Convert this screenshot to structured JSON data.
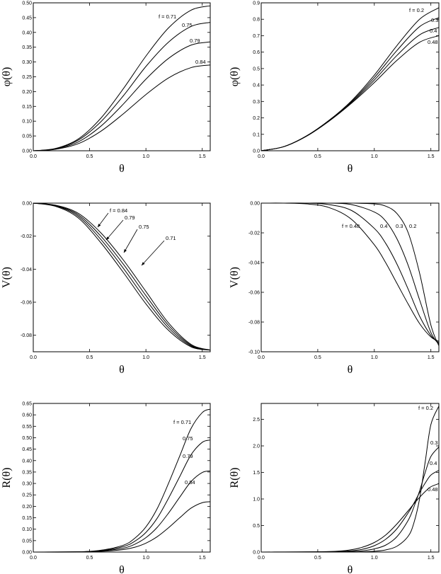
{
  "chart_data": [
    {
      "type": "line",
      "xlabel": "θ",
      "ylabel": "φ(θ)",
      "xlim": [
        0,
        1.5708
      ],
      "ylim": [
        0,
        0.5
      ],
      "xticks": [
        "0.0",
        "0.5",
        "1.0",
        "1.5"
      ],
      "yticks": [
        "0.00",
        "0.05",
        "0.10",
        "0.15",
        "0.20",
        "0.25",
        "0.30",
        "0.35",
        "0.40",
        "0.45",
        "0.50"
      ],
      "x": [
        0,
        0.2,
        0.4,
        0.6,
        0.8,
        1.0,
        1.2,
        1.4,
        1.5708
      ],
      "series": [
        {
          "name": "f = 0.71",
          "values": [
            0,
            0.008,
            0.04,
            0.11,
            0.21,
            0.32,
            0.415,
            0.475,
            0.49
          ]
        },
        {
          "name": "0.75",
          "values": [
            0,
            0.007,
            0.036,
            0.098,
            0.186,
            0.285,
            0.367,
            0.42,
            0.434
          ]
        },
        {
          "name": "0.79",
          "values": [
            0,
            0.006,
            0.03,
            0.083,
            0.158,
            0.242,
            0.312,
            0.357,
            0.368
          ]
        },
        {
          "name": "0.84",
          "values": [
            0,
            0.005,
            0.024,
            0.066,
            0.125,
            0.19,
            0.246,
            0.281,
            0.29
          ]
        }
      ]
    },
    {
      "type": "line",
      "xlabel": "θ",
      "ylabel": "φ(θ)",
      "xlim": [
        0,
        1.5708
      ],
      "ylim": [
        0,
        0.9
      ],
      "xticks": [
        "0.0",
        "0.5",
        "1.0",
        "1.5"
      ],
      "yticks": [
        "0.0",
        "0.1",
        "0.2",
        "0.3",
        "0.4",
        "0.5",
        "0.6",
        "0.7",
        "0.8",
        "0.9"
      ],
      "x": [
        0,
        0.2,
        0.4,
        0.6,
        0.8,
        1.0,
        1.2,
        1.4,
        1.5708
      ],
      "series": [
        {
          "name": "f = 0.2",
          "values": [
            0,
            0.025,
            0.09,
            0.185,
            0.305,
            0.46,
            0.64,
            0.8,
            0.87
          ]
        },
        {
          "name": "0.3",
          "values": [
            0,
            0.025,
            0.09,
            0.185,
            0.3,
            0.445,
            0.61,
            0.755,
            0.81
          ]
        },
        {
          "name": "0.4",
          "values": [
            0,
            0.025,
            0.089,
            0.183,
            0.295,
            0.43,
            0.58,
            0.705,
            0.75
          ]
        },
        {
          "name": "0.48",
          "values": [
            0,
            0.025,
            0.088,
            0.18,
            0.29,
            0.415,
            0.55,
            0.66,
            0.7
          ]
        }
      ]
    },
    {
      "type": "line",
      "xlabel": "θ",
      "ylabel": "V(θ)",
      "xlim": [
        0,
        1.5708
      ],
      "ylim": [
        -0.09,
        0
      ],
      "xticks": [
        "0.0",
        "0.5",
        "1.0",
        "1.5"
      ],
      "yticks": [
        "0.00",
        "-0.02",
        "-0.04",
        "-0.06",
        "-0.08"
      ],
      "x": [
        0,
        0.2,
        0.4,
        0.6,
        0.8,
        1.0,
        1.2,
        1.4,
        1.5708
      ],
      "series": [
        {
          "name": "f = 0.84",
          "values": [
            0,
            -0.002,
            -0.009,
            -0.024,
            -0.042,
            -0.061,
            -0.077,
            -0.087,
            -0.089
          ]
        },
        {
          "name": "0.79",
          "values": [
            0,
            -0.0017,
            -0.008,
            -0.022,
            -0.0395,
            -0.0585,
            -0.0755,
            -0.0865,
            -0.089
          ]
        },
        {
          "name": "0.75",
          "values": [
            0,
            -0.0015,
            -0.0071,
            -0.02,
            -0.037,
            -0.056,
            -0.074,
            -0.086,
            -0.089
          ]
        },
        {
          "name": "0.71",
          "values": [
            0,
            -0.0013,
            -0.0062,
            -0.018,
            -0.0345,
            -0.0535,
            -0.0725,
            -0.0855,
            -0.089
          ]
        }
      ]
    },
    {
      "type": "line",
      "xlabel": "θ",
      "ylabel": "V(θ)",
      "xlim": [
        0,
        1.5708
      ],
      "ylim": [
        -0.1,
        0
      ],
      "xticks": [
        "0.0",
        "0.5",
        "1.0",
        "1.5"
      ],
      "yticks": [
        "0.00",
        "-0.02",
        "-0.04",
        "-0.06",
        "-0.08",
        "-0.10"
      ],
      "x": [
        0,
        0.2,
        0.4,
        0.6,
        0.8,
        1.0,
        1.1,
        1.2,
        1.3,
        1.4,
        1.5,
        1.5708
      ],
      "series": [
        {
          "name": "f = 0.48",
          "values": [
            0,
            0,
            -0.0005,
            -0.003,
            -0.011,
            -0.028,
            -0.04,
            -0.054,
            -0.068,
            -0.081,
            -0.09,
            -0.093
          ]
        },
        {
          "name": "0.4",
          "values": [
            0,
            0,
            0,
            -0.001,
            -0.005,
            -0.017,
            -0.027,
            -0.041,
            -0.058,
            -0.076,
            -0.089,
            -0.094
          ]
        },
        {
          "name": "0.3",
          "values": [
            0,
            0,
            0,
            0,
            -0.001,
            -0.006,
            -0.012,
            -0.024,
            -0.042,
            -0.065,
            -0.087,
            -0.095
          ]
        },
        {
          "name": "0.2",
          "values": [
            0,
            0,
            0,
            0,
            0,
            -0.0005,
            -0.002,
            -0.007,
            -0.02,
            -0.047,
            -0.082,
            -0.096
          ]
        }
      ]
    },
    {
      "type": "line",
      "xlabel": "θ",
      "ylabel": "R(θ)",
      "xlim": [
        0,
        1.5708
      ],
      "ylim": [
        0,
        0.65
      ],
      "xticks": [
        "0.0",
        "0.5",
        "1.0",
        "1.5"
      ],
      "yticks": [
        "0.00",
        "0.05",
        "0.10",
        "0.15",
        "0.20",
        "0.25",
        "0.30",
        "0.35",
        "0.40",
        "0.45",
        "0.50",
        "0.55",
        "0.60",
        "0.65"
      ],
      "x": [
        0,
        0.4,
        0.6,
        0.8,
        0.9,
        1.0,
        1.1,
        1.2,
        1.3,
        1.4,
        1.5,
        1.5708
      ],
      "series": [
        {
          "name": "f = 0.71",
          "values": [
            0,
            0.001,
            0.008,
            0.03,
            0.06,
            0.11,
            0.19,
            0.3,
            0.42,
            0.54,
            0.61,
            0.625
          ]
        },
        {
          "name": "0.75",
          "values": [
            0,
            0.001,
            0.006,
            0.024,
            0.047,
            0.086,
            0.148,
            0.235,
            0.33,
            0.425,
            0.48,
            0.49
          ]
        },
        {
          "name": "0.79",
          "values": [
            0,
            0.001,
            0.005,
            0.017,
            0.034,
            0.063,
            0.108,
            0.17,
            0.24,
            0.308,
            0.348,
            0.355
          ]
        },
        {
          "name": "0.84",
          "values": [
            0,
            0,
            0.003,
            0.011,
            0.021,
            0.039,
            0.067,
            0.106,
            0.15,
            0.192,
            0.216,
            0.22
          ]
        }
      ]
    },
    {
      "type": "line",
      "xlabel": "θ",
      "ylabel": "R(θ)",
      "xlim": [
        0,
        1.5708
      ],
      "ylim": [
        0,
        2.8
      ],
      "xticks": [
        "0.0",
        "0.5",
        "1.0",
        "1.5"
      ],
      "yticks": [
        "0.0",
        "0.5",
        "1.0",
        "1.5",
        "2.0",
        "2.5"
      ],
      "x": [
        0,
        0.6,
        0.8,
        0.9,
        1.0,
        1.1,
        1.2,
        1.3,
        1.35,
        1.4,
        1.45,
        1.5,
        1.5708
      ],
      "series": [
        {
          "name": "f = 0.2",
          "values": [
            0,
            0,
            0.002,
            0.005,
            0.015,
            0.04,
            0.11,
            0.3,
            0.55,
            1.0,
            1.7,
            2.4,
            2.75
          ]
        },
        {
          "name": "0.3",
          "values": [
            0,
            0.002,
            0.01,
            0.025,
            0.06,
            0.13,
            0.29,
            0.6,
            0.85,
            1.15,
            1.5,
            1.8,
            1.98
          ]
        },
        {
          "name": "0.4",
          "values": [
            0,
            0.005,
            0.025,
            0.055,
            0.12,
            0.24,
            0.44,
            0.74,
            0.92,
            1.12,
            1.3,
            1.45,
            1.54
          ]
        },
        {
          "name": "0.48",
          "values": [
            0,
            0.01,
            0.045,
            0.095,
            0.18,
            0.32,
            0.53,
            0.78,
            0.91,
            1.03,
            1.14,
            1.23,
            1.29
          ]
        }
      ]
    }
  ],
  "annotations": [
    [
      "f = 0.71",
      "0.75",
      "0.79",
      "0.84"
    ],
    [
      "f = 0.2",
      "0.3",
      "0.4",
      "0.48"
    ],
    [
      "f = 0.84",
      "0.79",
      "0.75",
      "0.71"
    ],
    [
      "f = 0.48",
      "0.4",
      "0.3",
      "0.2"
    ],
    [
      "f = 0.71",
      "0.75",
      "0.79",
      "0.84"
    ],
    [
      "f = 0.2",
      "0.3",
      "0.4",
      "0.48"
    ]
  ]
}
